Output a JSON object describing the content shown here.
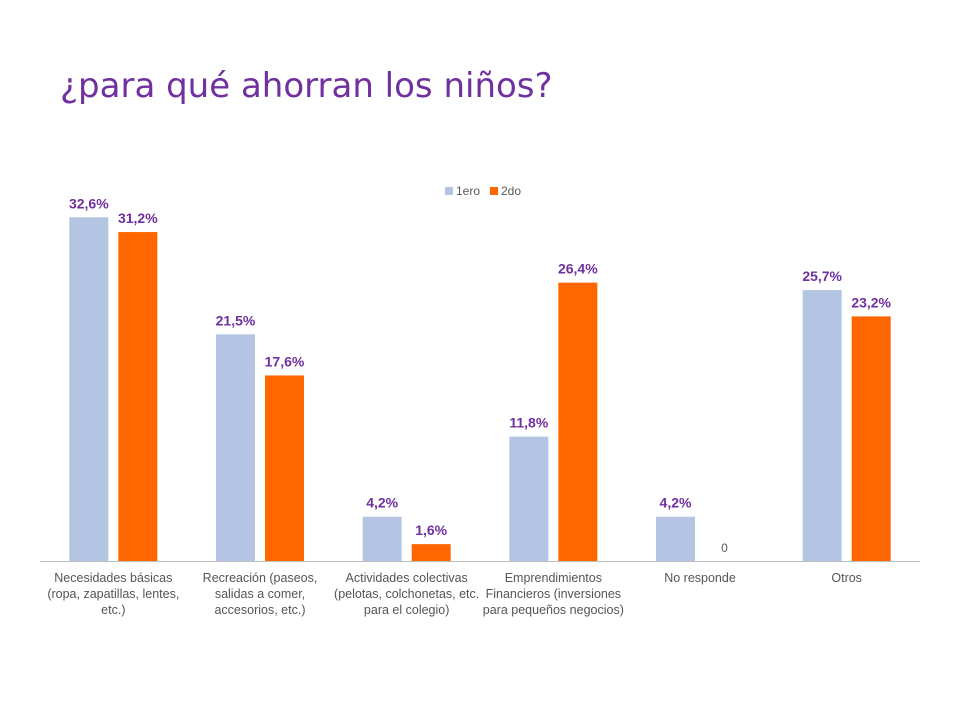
{
  "slide": {
    "title": "¿para qué ahorran los niños?"
  },
  "chart_data": {
    "type": "bar",
    "title": "",
    "xlabel": "",
    "ylabel": "",
    "ylim": [
      0,
      35
    ],
    "grid": false,
    "legend_position": "top",
    "categories": [
      "Necesidades básicas (ropa, zapatillas, lentes, etc.)",
      "Recreación (paseos, salidas a comer, accesorios, etc.)",
      "Actividades colectivas (pelotas, colchonetas, etc.  para el colegio)",
      "Emprendimientos Financieros (inversiones para pequeños negocios)",
      "No responde",
      "Otros"
    ],
    "series": [
      {
        "name": "1ero",
        "color": "#b4c5e4",
        "values": [
          32.6,
          21.5,
          4.2,
          11.8,
          4.2,
          25.7
        ],
        "labels": [
          "32,6%",
          "21,5%",
          "4,2%",
          "11,8%",
          "4,2%",
          "25,7%"
        ],
        "label_color": "#7030a0"
      },
      {
        "name": "2do",
        "color": "#ff6600",
        "values": [
          31.2,
          17.6,
          1.6,
          26.4,
          0,
          23.2
        ],
        "labels": [
          "31,2%",
          "17,6%",
          "1,6%",
          "26,4%",
          "0",
          "23,2%"
        ],
        "label_color": "#7030a0"
      }
    ]
  }
}
